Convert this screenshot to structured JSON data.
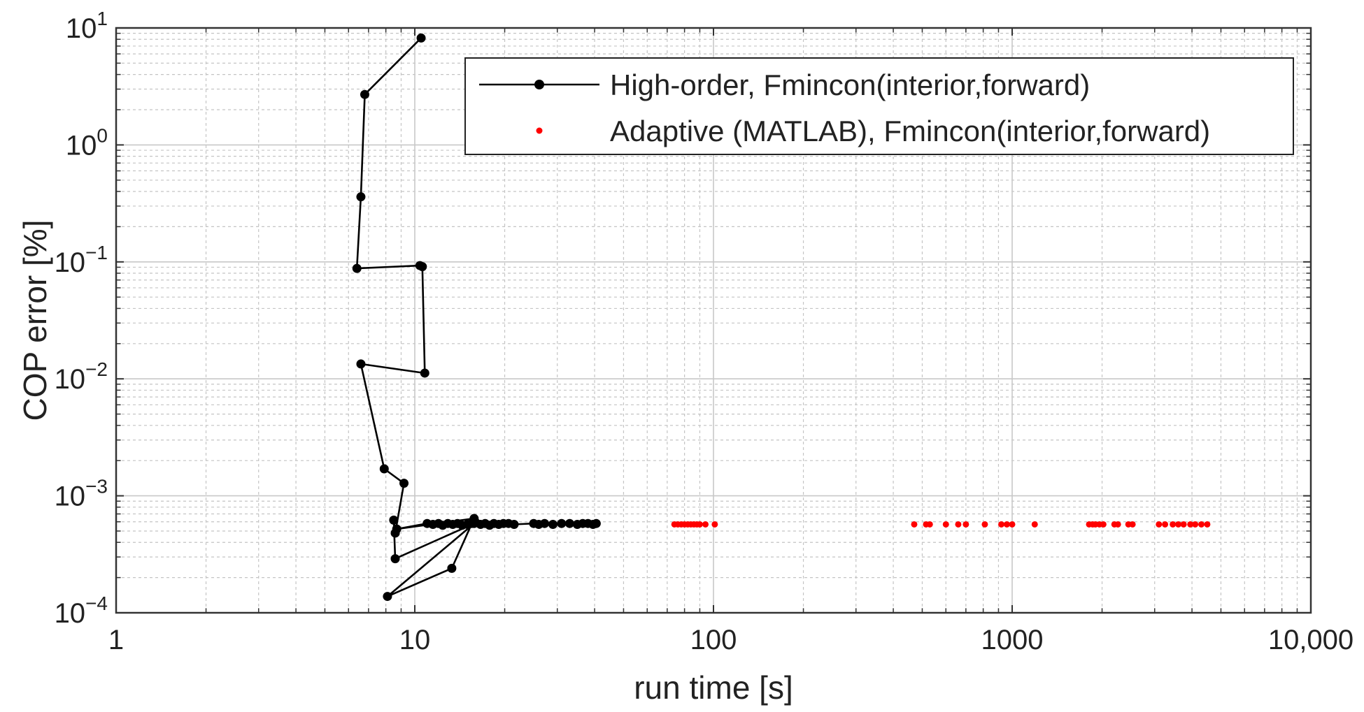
{
  "chart_data": {
    "type": "scatter",
    "xscale": "log",
    "yscale": "log",
    "xlim": [
      1,
      10000
    ],
    "ylim": [
      0.0001,
      10
    ],
    "xlabel": "run time [s]",
    "ylabel": "COP error [%]",
    "grid": true,
    "minor_grid": true,
    "legend_position": "top-right",
    "x_ticks": [
      {
        "value": 1,
        "label": "1"
      },
      {
        "value": 10,
        "label": "10"
      },
      {
        "value": 100,
        "label": "100"
      },
      {
        "value": 1000,
        "label": "1000"
      },
      {
        "value": 10000,
        "label": "10,000"
      }
    ],
    "y_ticks": [
      {
        "value": 0.0001,
        "base": "10",
        "exp": "−4"
      },
      {
        "value": 0.001,
        "base": "10",
        "exp": "−3"
      },
      {
        "value": 0.01,
        "base": "10",
        "exp": "−2"
      },
      {
        "value": 0.1,
        "base": "10",
        "exp": "−1"
      },
      {
        "value": 1,
        "base": "10",
        "exp": "0"
      },
      {
        "value": 10,
        "base": "10",
        "exp": "1"
      }
    ],
    "series": [
      {
        "name": "High-order, Fmincon(interior,forward)",
        "style": "line-marker",
        "color": "#000000",
        "points": [
          [
            10.5,
            8.2
          ],
          [
            6.8,
            2.7
          ],
          [
            6.6,
            0.36
          ],
          [
            6.4,
            0.088
          ],
          [
            10.4,
            0.093
          ],
          [
            10.6,
            0.091
          ],
          [
            10.8,
            0.0112
          ],
          [
            6.6,
            0.0134
          ],
          [
            7.9,
            0.0017
          ],
          [
            9.2,
            0.00128
          ],
          [
            8.6,
            0.00048
          ],
          [
            8.5,
            0.00062
          ],
          [
            8.6,
            0.00029
          ],
          [
            15.8,
            0.00058
          ],
          [
            8.1,
            0.000138
          ],
          [
            13.3,
            0.00024
          ],
          [
            15.8,
            0.00064
          ],
          [
            8.7,
            0.00052
          ],
          [
            11.0,
            0.00058
          ],
          [
            11.5,
            0.00057
          ],
          [
            12.0,
            0.00058
          ],
          [
            12.4,
            0.00056
          ],
          [
            12.9,
            0.00058
          ],
          [
            13.4,
            0.00057
          ],
          [
            13.9,
            0.00058
          ],
          [
            14.4,
            0.00056
          ],
          [
            15.0,
            0.00057
          ],
          [
            15.5,
            0.00058
          ],
          [
            16.0,
            0.00059
          ],
          [
            16.6,
            0.00057
          ],
          [
            17.2,
            0.00058
          ],
          [
            17.8,
            0.00056
          ],
          [
            18.4,
            0.00058
          ],
          [
            19.1,
            0.00057
          ],
          [
            19.8,
            0.00058
          ],
          [
            20.6,
            0.00058
          ],
          [
            21.5,
            0.00057
          ],
          [
            25.0,
            0.00058
          ],
          [
            26.0,
            0.00057
          ],
          [
            27.2,
            0.00058
          ],
          [
            29.0,
            0.00057
          ],
          [
            31.0,
            0.00058
          ],
          [
            33.0,
            0.00058
          ],
          [
            35.0,
            0.00057
          ],
          [
            36.5,
            0.00058
          ],
          [
            38.0,
            0.00058
          ],
          [
            39.5,
            0.00057
          ],
          [
            40.5,
            0.00058
          ]
        ]
      },
      {
        "name": "Adaptive (MATLAB), Fmincon(interior,forward)",
        "style": "marker",
        "color": "#ff0000",
        "points": [
          [
            74,
            0.00057
          ],
          [
            76,
            0.00057
          ],
          [
            78,
            0.00057
          ],
          [
            80,
            0.00057
          ],
          [
            82,
            0.00057
          ],
          [
            84,
            0.00057
          ],
          [
            86,
            0.00057
          ],
          [
            88,
            0.00057
          ],
          [
            90,
            0.00057
          ],
          [
            94,
            0.00057
          ],
          [
            101,
            0.00057
          ],
          [
            470,
            0.00057
          ],
          [
            515,
            0.00057
          ],
          [
            530,
            0.00057
          ],
          [
            600,
            0.00057
          ],
          [
            660,
            0.00057
          ],
          [
            700,
            0.00057
          ],
          [
            810,
            0.00057
          ],
          [
            920,
            0.00057
          ],
          [
            960,
            0.00057
          ],
          [
            1000,
            0.00057
          ],
          [
            1190,
            0.00057
          ],
          [
            1810,
            0.00057
          ],
          [
            1860,
            0.00057
          ],
          [
            1900,
            0.00057
          ],
          [
            1960,
            0.00057
          ],
          [
            2020,
            0.00057
          ],
          [
            2200,
            0.00057
          ],
          [
            2260,
            0.00057
          ],
          [
            2450,
            0.00057
          ],
          [
            2530,
            0.00057
          ],
          [
            3100,
            0.00057
          ],
          [
            3250,
            0.00057
          ],
          [
            3450,
            0.00057
          ],
          [
            3600,
            0.00057
          ],
          [
            3750,
            0.00057
          ],
          [
            3950,
            0.00057
          ],
          [
            4100,
            0.00057
          ],
          [
            4300,
            0.00057
          ],
          [
            4500,
            0.00057
          ]
        ]
      }
    ]
  }
}
